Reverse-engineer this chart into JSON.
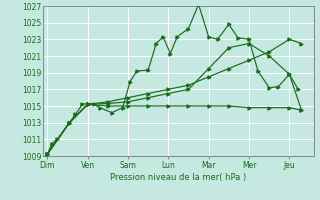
{
  "background_color": "#c5e8e0",
  "grid_color": "#ffffff",
  "line_color": "#1a6b1a",
  "x_labels": [
    "Dim",
    "Ven",
    "Sam",
    "Lun",
    "Mar",
    "Mer",
    "Jeu"
  ],
  "ylabel": "Pression niveau de la mer( hPa )",
  "ylim": [
    1009,
    1027
  ],
  "yticks": [
    1009,
    1011,
    1013,
    1015,
    1017,
    1019,
    1021,
    1023,
    1025,
    1027
  ],
  "series1_x": [
    0.0,
    0.12,
    0.25,
    0.55,
    0.7,
    0.87,
    1.0,
    1.15,
    1.3,
    1.6,
    1.87,
    2.05,
    2.22,
    2.5,
    2.7,
    2.87,
    3.05,
    3.22,
    3.5,
    3.75,
    4.0,
    4.22,
    4.5,
    4.72,
    5.0,
    5.22,
    5.5,
    5.72,
    6.0,
    6.22
  ],
  "series1_y": [
    1009.2,
    1010.5,
    1011.0,
    1013.0,
    1014.0,
    1015.2,
    1015.3,
    1015.2,
    1014.8,
    1014.2,
    1014.8,
    1017.9,
    1019.2,
    1019.3,
    1022.5,
    1023.3,
    1021.3,
    1023.3,
    1024.3,
    1027.2,
    1023.3,
    1023.0,
    1024.8,
    1023.2,
    1023.0,
    1019.2,
    1017.2,
    1017.3,
    1018.8,
    1017.0
  ],
  "series2_x": [
    0.0,
    0.55,
    1.0,
    1.5,
    2.0,
    2.5,
    3.0,
    3.5,
    4.0,
    4.5,
    5.0,
    5.5,
    6.0,
    6.3
  ],
  "series2_y": [
    1009.2,
    1013.0,
    1015.2,
    1015.0,
    1015.0,
    1015.0,
    1015.0,
    1015.0,
    1015.0,
    1015.0,
    1014.8,
    1014.8,
    1014.8,
    1014.5
  ],
  "series3_x": [
    0.0,
    0.55,
    1.0,
    1.5,
    2.0,
    2.5,
    3.0,
    3.5,
    4.0,
    4.5,
    5.0,
    5.5,
    6.0,
    6.3
  ],
  "series3_y": [
    1009.2,
    1013.0,
    1015.2,
    1015.5,
    1016.0,
    1016.5,
    1017.0,
    1017.5,
    1018.5,
    1019.5,
    1020.5,
    1021.5,
    1023.0,
    1022.5
  ],
  "series4_x": [
    0.0,
    0.55,
    1.0,
    1.5,
    2.0,
    2.5,
    3.0,
    3.5,
    4.0,
    4.5,
    5.0,
    5.5,
    6.0,
    6.3
  ],
  "series4_y": [
    1009.2,
    1013.0,
    1015.2,
    1015.3,
    1015.5,
    1016.0,
    1016.5,
    1017.0,
    1019.5,
    1022.0,
    1022.5,
    1021.0,
    1018.8,
    1014.5
  ]
}
